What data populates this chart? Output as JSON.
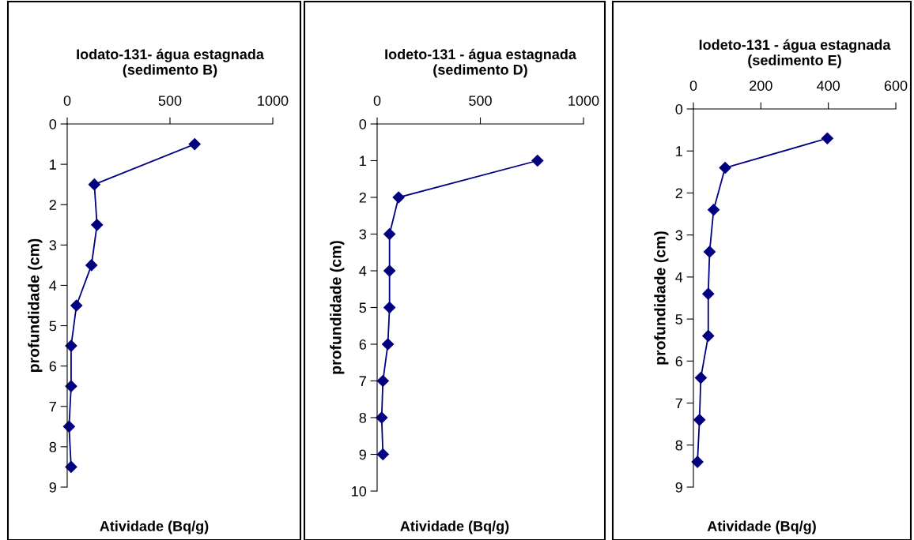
{
  "chart_data": [
    {
      "type": "line",
      "title": "Iodato-131- água estagnada\n(sedimento B)",
      "xlabel": "Atividade (Bq/g)",
      "ylabel": "profundidade (cm)",
      "marker": "diamond",
      "line_style": "solid",
      "grid": false,
      "legend": false,
      "series": [
        {
          "color": "#000080",
          "x": [
            620,
            132,
            145,
            118,
            45,
            19,
            19,
            9,
            19
          ],
          "values": [
            0.5,
            1.5,
            2.5,
            3.5,
            4.5,
            5.5,
            6.5,
            7.5,
            8.5
          ]
        }
      ],
      "xlim": [
        0,
        1000
      ],
      "xticks": [
        0,
        500,
        1000
      ],
      "ylim": [
        9,
        0
      ],
      "yticks": [
        0,
        1,
        2,
        3,
        4,
        5,
        6,
        7,
        8,
        9
      ]
    },
    {
      "type": "line",
      "title": "Iodeto-131 - água estagnada\n(sedimento D)",
      "xlabel": "Atividade (Bq/g)",
      "ylabel": "profundidade (cm)",
      "marker": "diamond",
      "line_style": "solid",
      "grid": false,
      "legend": false,
      "series": [
        {
          "color": "#000080",
          "x": [
            777,
            104,
            60,
            60,
            60,
            52,
            28,
            22,
            28
          ],
          "values": [
            1,
            2,
            3,
            4,
            5,
            6,
            7,
            8,
            9
          ]
        }
      ],
      "xlim": [
        0,
        1000
      ],
      "xticks": [
        0,
        500,
        1000
      ],
      "ylim": [
        10,
        0
      ],
      "yticks": [
        0,
        1,
        2,
        3,
        4,
        5,
        6,
        7,
        8,
        9,
        10
      ]
    },
    {
      "type": "line",
      "title": "Iodeto-131 - água estagnada\n(sedimento E)",
      "xlabel": "Atividade (Bq/g)",
      "ylabel": "profundidade (cm)",
      "marker": "diamond",
      "line_style": "solid",
      "grid": false,
      "legend": false,
      "series": [
        {
          "color": "#000080",
          "x": [
            397,
            94,
            60,
            48,
            44,
            44,
            22,
            18,
            12
          ],
          "values": [
            0.7,
            1.4,
            2.4,
            3.4,
            4.4,
            5.4,
            6.4,
            7.4,
            8.4
          ]
        }
      ],
      "xlim": [
        0,
        600
      ],
      "xticks": [
        0,
        200,
        400,
        600
      ],
      "ylim": [
        9,
        0
      ],
      "yticks": [
        0,
        1,
        2,
        3,
        4,
        5,
        6,
        7,
        8,
        9
      ]
    }
  ]
}
